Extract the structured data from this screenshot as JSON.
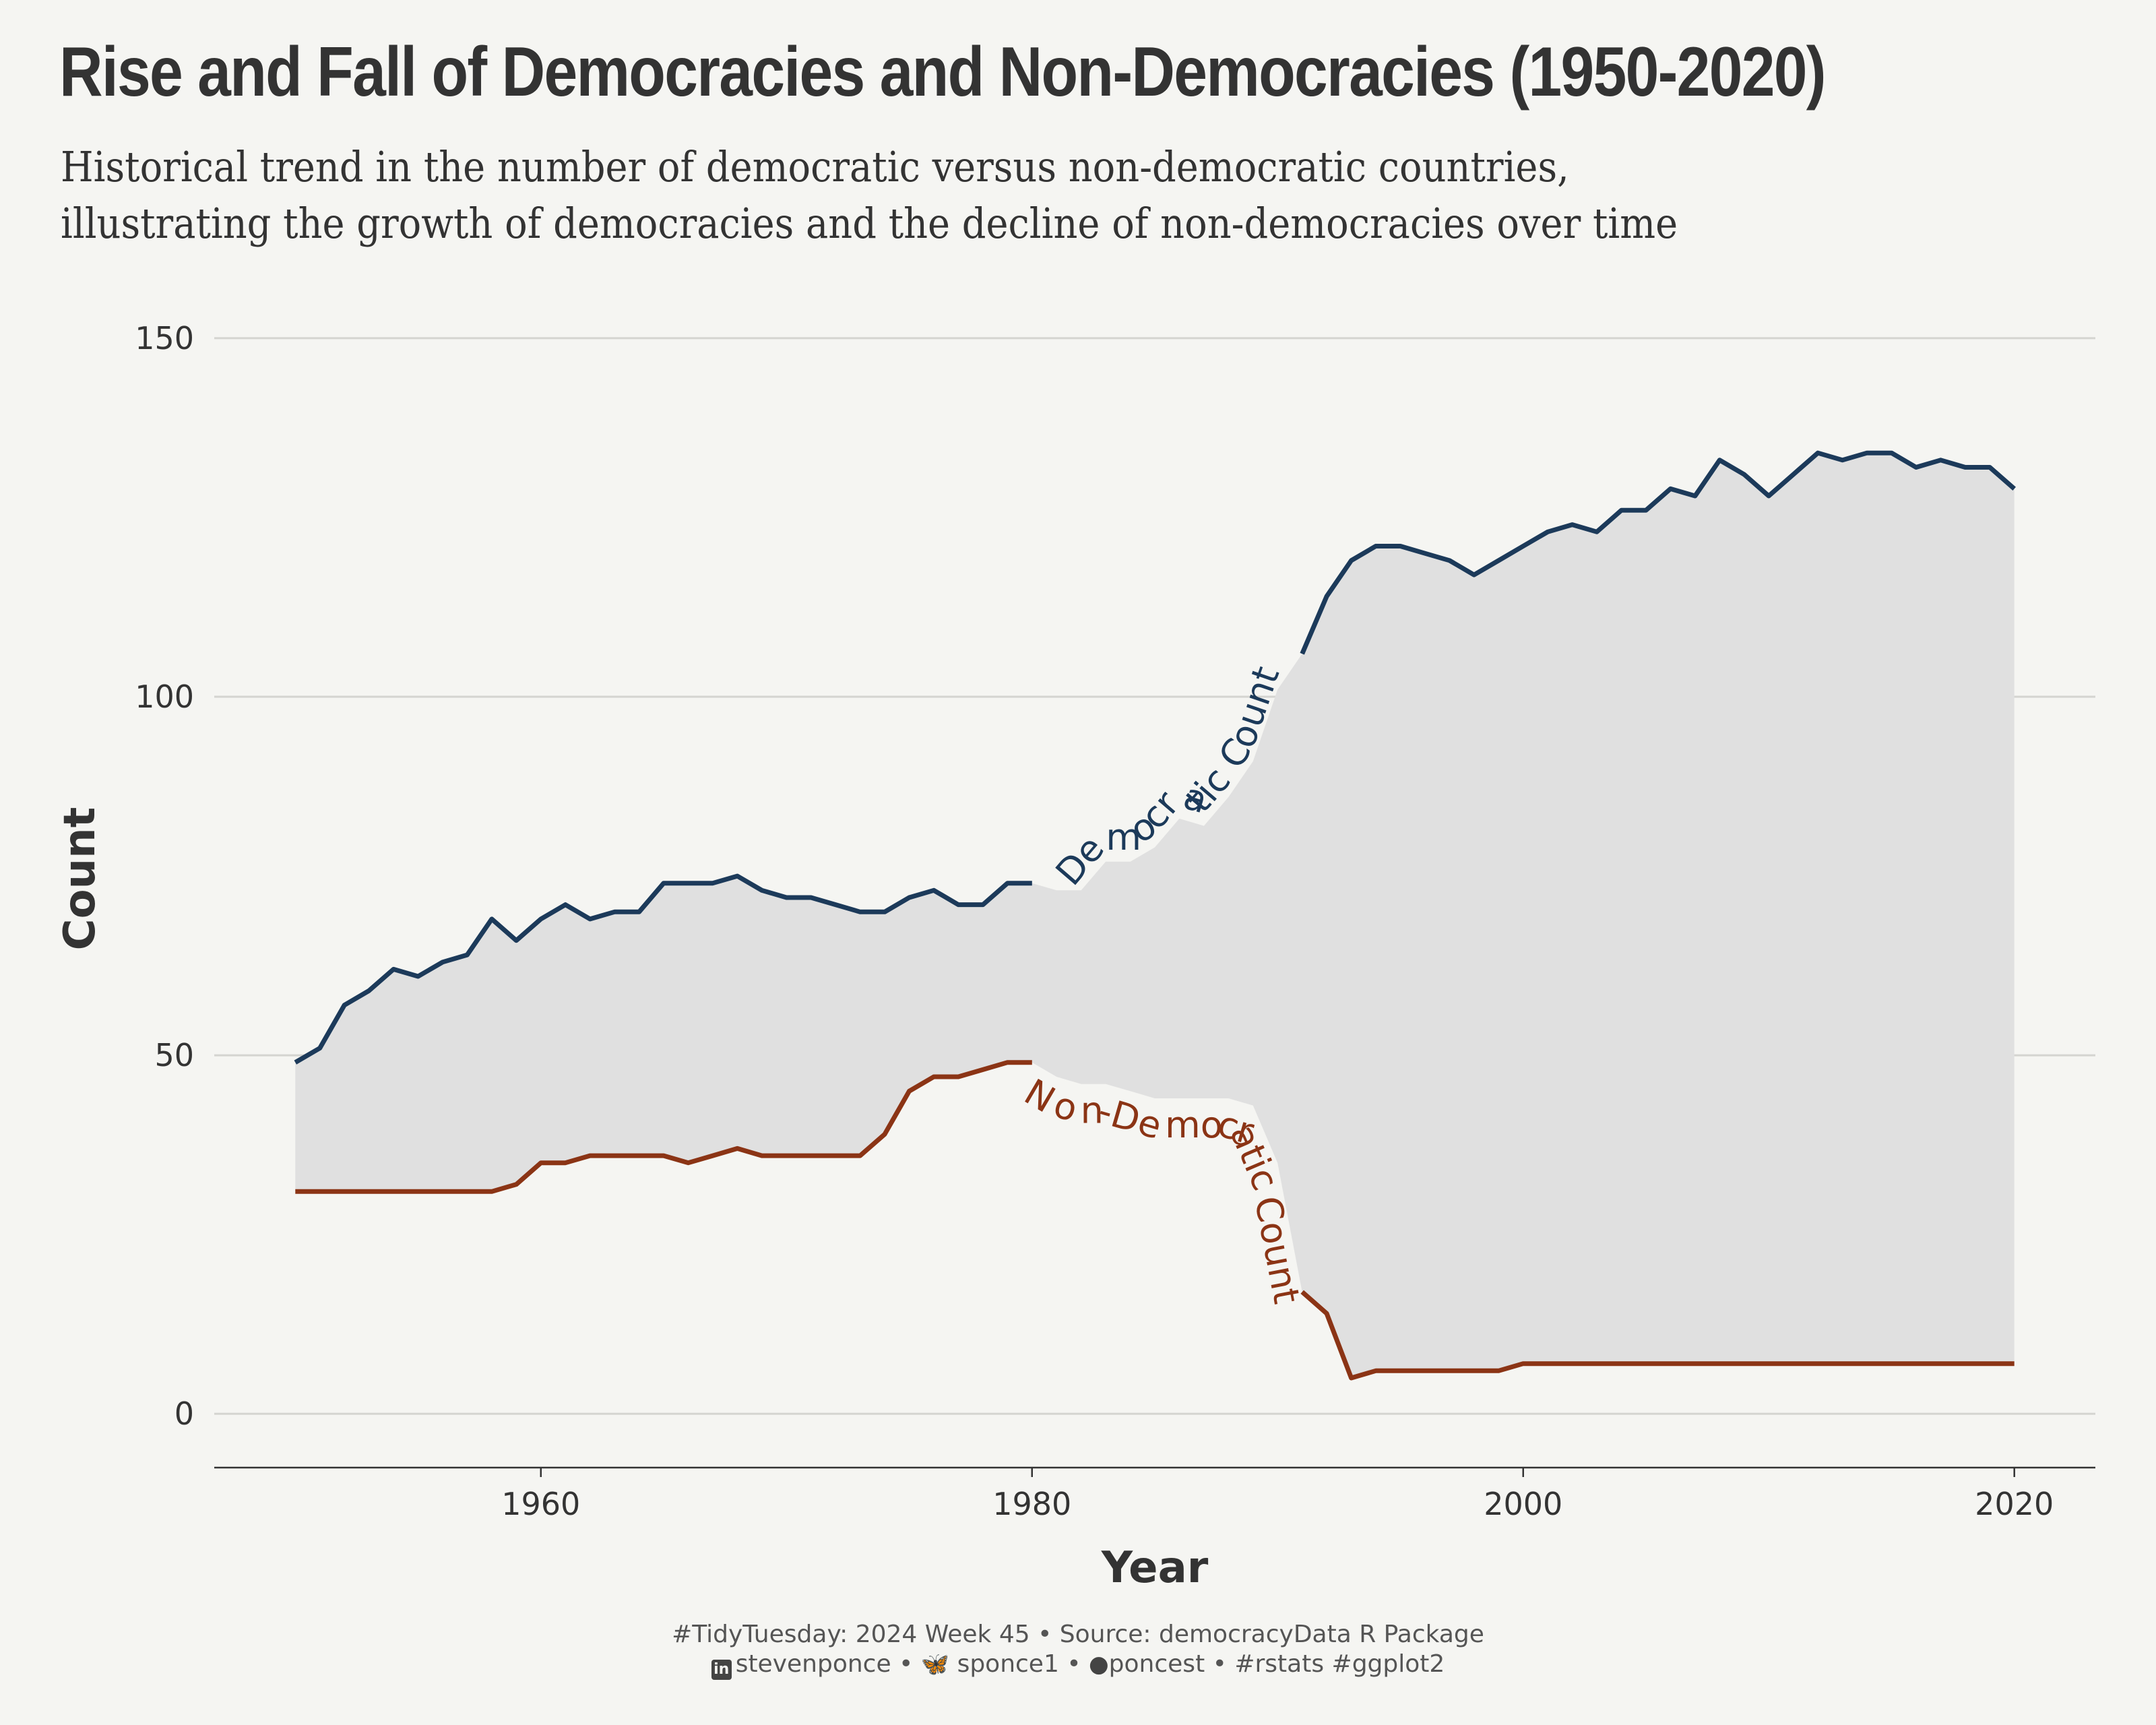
{
  "title": "Rise and Fall of Democracies and Non-Democracies (1950-2020)",
  "subtitle_lines": [
    "Historical trend in the number of democratic versus non-democratic countries,",
    "illustrating the growth of democracies and the decline of non-democracies over time"
  ],
  "caption": {
    "line1": "#TidyTuesday: 2024 Week 45 • Source: democracyData R Package",
    "linkedin": "stevenponce",
    "bluesky": "sponce1",
    "github": "poncest",
    "tags": "#rstats #ggplot2",
    "separator": "•"
  },
  "colors": {
    "background": "#f5f5f2",
    "democratic": "#1c3a5a",
    "non_democratic": "#8b3415",
    "ribbon": "#e0e0e0",
    "gridline": "#d4d4d0",
    "text": "#333333"
  },
  "chart_data": {
    "type": "line",
    "xlabel": "Year",
    "ylabel": "Count",
    "xlim": [
      1946.7,
      2023.3
    ],
    "ylim": [
      -7.5,
      153
    ],
    "xticks": [
      1960,
      1980,
      2000,
      2020
    ],
    "yticks": [
      0,
      50,
      100,
      150
    ],
    "grid": "horizontal",
    "ribbon_between_series": true,
    "x": [
      1950,
      1951,
      1952,
      1953,
      1954,
      1955,
      1956,
      1957,
      1958,
      1959,
      1960,
      1961,
      1962,
      1963,
      1964,
      1965,
      1966,
      1967,
      1968,
      1969,
      1970,
      1971,
      1972,
      1973,
      1974,
      1975,
      1976,
      1977,
      1978,
      1979,
      1980,
      1981,
      1982,
      1983,
      1984,
      1985,
      1986,
      1987,
      1988,
      1989,
      1990,
      1991,
      1992,
      1993,
      1994,
      1995,
      1996,
      1997,
      1998,
      1999,
      2000,
      2001,
      2002,
      2003,
      2004,
      2005,
      2006,
      2007,
      2008,
      2009,
      2010,
      2011,
      2012,
      2013,
      2014,
      2015,
      2016,
      2017,
      2018,
      2019,
      2020
    ],
    "series": [
      {
        "name": "Democratic Count",
        "color": "#1c3a5a",
        "values": [
          49,
          51,
          57,
          59,
          62,
          61,
          63,
          64,
          69,
          66,
          69,
          71,
          69,
          70,
          70,
          74,
          74,
          74,
          75,
          73,
          72,
          72,
          71,
          70,
          70,
          72,
          73,
          71,
          71,
          74,
          74,
          73,
          73,
          77,
          77,
          79,
          83,
          82,
          86,
          91,
          101,
          106,
          114,
          119,
          121,
          121,
          120,
          119,
          117,
          119,
          121,
          123,
          124,
          123,
          126,
          126,
          129,
          128,
          133,
          131,
          128,
          131,
          134,
          133,
          134,
          134,
          132,
          133,
          132,
          132,
          129
        ]
      },
      {
        "name": "Non-Democratic Count",
        "color": "#8b3415",
        "values": [
          31,
          31,
          31,
          31,
          31,
          31,
          31,
          31,
          31,
          32,
          35,
          35,
          36,
          36,
          36,
          36,
          35,
          36,
          37,
          36,
          36,
          36,
          36,
          36,
          39,
          45,
          47,
          47,
          48,
          49,
          49,
          47,
          46,
          46,
          45,
          44,
          44,
          44,
          44,
          43,
          35,
          17,
          14,
          5,
          6,
          6,
          6,
          6,
          6,
          6,
          7,
          7,
          7,
          7,
          7,
          7,
          7,
          7,
          7,
          7,
          7,
          7,
          7,
          7,
          7,
          7,
          7,
          7,
          7,
          7,
          7
        ]
      }
    ]
  }
}
